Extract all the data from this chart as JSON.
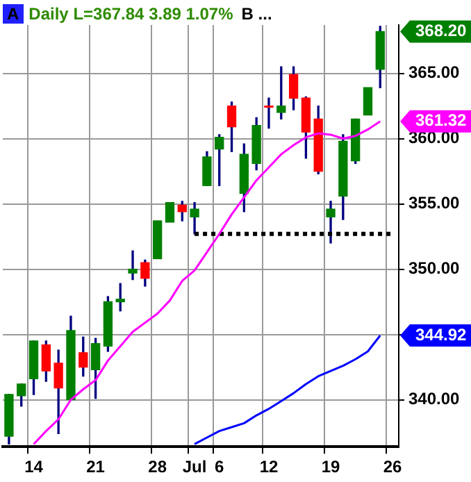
{
  "chart_data": {
    "type": "candlestick",
    "title": "Daily L=367.84 3.89 1.07%",
    "categories": [
      null,
      null,
      "14",
      null,
      null,
      null,
      null,
      "21",
      null,
      null,
      null,
      null,
      "28",
      null,
      null,
      "Jul",
      null,
      "6",
      null,
      null,
      null,
      "12",
      null,
      null,
      null,
      null,
      "19",
      null,
      null,
      null,
      null,
      "26"
    ],
    "ohlc": [
      [
        337.2,
        340.4,
        336.6,
        340.4
      ],
      [
        340.3,
        341.2,
        339.5,
        341.2
      ],
      [
        341.6,
        344.5,
        340.4,
        344.5
      ],
      [
        344.2,
        344.5,
        341.4,
        342.2
      ],
      [
        342.8,
        343.8,
        337.4,
        340.9
      ],
      [
        340.0,
        346.4,
        340.0,
        345.3
      ],
      [
        343.6,
        344.8,
        341.8,
        342.5
      ],
      [
        342.3,
        344.7,
        340.1,
        344.3
      ],
      [
        344.1,
        347.9,
        343.7,
        347.5
      ],
      [
        347.5,
        348.9,
        346.8,
        347.7
      ],
      [
        349.7,
        351.4,
        349.2,
        350.0
      ],
      [
        350.5,
        350.7,
        348.7,
        349.3
      ],
      [
        350.8,
        353.7,
        350.8,
        353.7
      ],
      [
        353.6,
        355.1,
        353.6,
        355.1
      ],
      [
        354.9,
        355.2,
        353.7,
        354.4
      ],
      [
        354.0,
        355.1,
        352.7,
        354.6
      ],
      [
        356.4,
        359.0,
        356.4,
        358.6
      ],
      [
        359.2,
        360.3,
        356.4,
        360.1
      ],
      [
        362.5,
        362.8,
        359.0,
        360.9
      ],
      [
        355.8,
        359.6,
        354.4,
        358.8
      ],
      [
        358.1,
        361.6,
        357.6,
        361.0
      ],
      [
        362.5,
        363.1,
        360.8,
        362.4
      ],
      [
        362.0,
        365.5,
        361.5,
        362.5
      ],
      [
        364.9,
        365.5,
        362.2,
        363.1
      ],
      [
        363.1,
        363.2,
        358.5,
        360.5
      ],
      [
        361.5,
        362.5,
        357.3,
        357.5
      ],
      [
        354.0,
        355.2,
        352.0,
        354.6
      ],
      [
        355.6,
        360.3,
        353.8,
        359.8
      ],
      [
        358.3,
        361.5,
        358.1,
        361.5
      ],
      [
        361.8,
        363.9,
        361.8,
        363.9
      ],
      [
        365.3,
        368.6,
        363.9,
        368.2
      ],
      null
    ],
    "colors": [
      "#008000",
      "#008000",
      "#008000",
      "#ff0000",
      "#ff0000",
      "#008000",
      "#ff0000",
      "#008000",
      "#008000",
      "#008000",
      "#008000",
      "#ff0000",
      "#008000",
      "#008000",
      "#ff0000",
      "#008000",
      "#008000",
      "#008000",
      "#ff0000",
      "#008000",
      "#008000",
      "#ff0000",
      "#008000",
      "#ff0000",
      "#ff0000",
      "#ff0000",
      "#008000",
      "#008000",
      "#008000",
      "#008000",
      "#008000",
      null
    ],
    "series": [
      {
        "type": "line",
        "color": "#ff00ff",
        "values": [
          null,
          null,
          336.6,
          337.6,
          338.5,
          340.0,
          340.8,
          341.5,
          343.0,
          344.1,
          345.2,
          345.9,
          346.6,
          347.6,
          349.1,
          349.9,
          351.3,
          352.7,
          354.2,
          355.5,
          356.8,
          357.8,
          358.8,
          359.5,
          360.1,
          360.4,
          360.3,
          360.0,
          360.2,
          360.7,
          361.32,
          null
        ]
      },
      {
        "type": "line",
        "color": "#0000ff",
        "values": [
          null,
          null,
          null,
          null,
          null,
          null,
          null,
          null,
          null,
          null,
          null,
          null,
          null,
          null,
          null,
          336.6,
          337.1,
          337.6,
          337.9,
          338.2,
          338.8,
          339.3,
          339.9,
          340.5,
          341.2,
          341.8,
          342.2,
          342.6,
          343.1,
          343.7,
          344.92,
          null
        ]
      },
      {
        "type": "line",
        "color": "#000000",
        "line_style": "dotted",
        "values": [
          null,
          null,
          null,
          null,
          null,
          null,
          null,
          null,
          null,
          null,
          null,
          null,
          null,
          null,
          null,
          352.7,
          352.7,
          352.7,
          352.7,
          352.7,
          352.7,
          352.7,
          352.7,
          352.7,
          352.7,
          352.7,
          352.7,
          352.7,
          352.7,
          352.7,
          352.7,
          352.7
        ]
      }
    ],
    "ylim": [
      336.4,
      368.7
    ],
    "yticks": [
      {
        "value": 340,
        "label": "340.00"
      },
      {
        "value": 345,
        "label": null
      },
      {
        "value": 350,
        "label": "350.00"
      },
      {
        "value": 355,
        "label": "355.00"
      },
      {
        "value": 360,
        "label": "360.00"
      },
      {
        "value": 365,
        "label": "365.00"
      }
    ],
    "grid": true,
    "legend": false,
    "annotations": [
      "A",
      "B ...",
      "368.20",
      "361.32",
      "344.92"
    ]
  }
}
